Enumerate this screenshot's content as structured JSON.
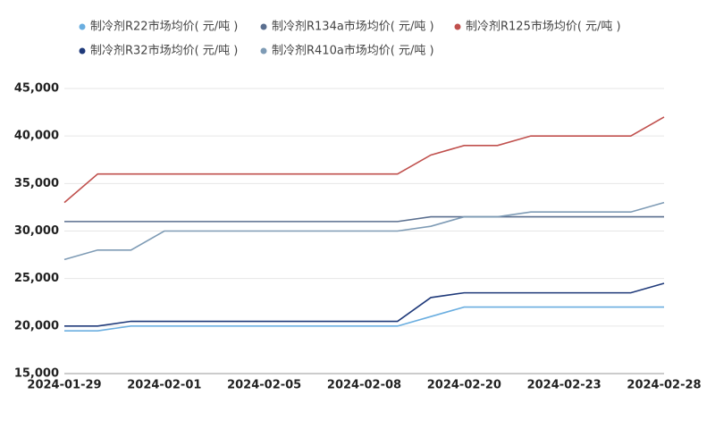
{
  "chart_data": {
    "type": "line",
    "categories": [
      "2024-01-29",
      null,
      null,
      "2024-02-01",
      null,
      null,
      "2024-02-05",
      null,
      null,
      "2024-02-08",
      null,
      null,
      "2024-02-20",
      null,
      null,
      "2024-02-23",
      null,
      null,
      "2024-02-28"
    ],
    "series": [
      {
        "name": "制冷剂R22市场均价( 元/吨 )",
        "color": "#6aaee0",
        "values": [
          19500,
          19500,
          20000,
          20000,
          20000,
          20000,
          20000,
          20000,
          20000,
          20000,
          20000,
          21000,
          22000,
          22000,
          22000,
          22000,
          22000,
          22000,
          22000
        ]
      },
      {
        "name": "制冷剂R134a市场均价( 元/吨 )",
        "color": "#5a6f8f",
        "values": [
          31000,
          31000,
          31000,
          31000,
          31000,
          31000,
          31000,
          31000,
          31000,
          31000,
          31000,
          31500,
          31500,
          31500,
          31500,
          31500,
          31500,
          31500,
          31500
        ]
      },
      {
        "name": "制冷剂R125市场均价( 元/吨 )",
        "color": "#c0504d",
        "values": [
          33000,
          36000,
          36000,
          36000,
          36000,
          36000,
          36000,
          36000,
          36000,
          36000,
          36000,
          38000,
          39000,
          39000,
          40000,
          40000,
          40000,
          40000,
          42000
        ]
      },
      {
        "name": "制冷剂R32市场均价( 元/吨 )",
        "color": "#1f3a7a",
        "values": [
          20000,
          20000,
          20500,
          20500,
          20500,
          20500,
          20500,
          20500,
          20500,
          20500,
          20500,
          23000,
          23500,
          23500,
          23500,
          23500,
          23500,
          23500,
          24500
        ]
      },
      {
        "name": "制冷剂R410a市场均价( 元/吨 )",
        "color": "#7e9bb5",
        "values": [
          27000,
          28000,
          28000,
          30000,
          30000,
          30000,
          30000,
          30000,
          30000,
          30000,
          30000,
          30500,
          31500,
          31500,
          32000,
          32000,
          32000,
          32000,
          33000
        ]
      }
    ],
    "ylim": [
      15000,
      45000
    ],
    "yticks": [
      {
        "value": 15000,
        "label": "15,000"
      },
      {
        "value": 20000,
        "label": "20,000"
      },
      {
        "value": 25000,
        "label": "25,000"
      },
      {
        "value": 30000,
        "label": "30,000"
      },
      {
        "value": 35000,
        "label": "35,000"
      },
      {
        "value": 40000,
        "label": "40,000"
      },
      {
        "value": 45000,
        "label": "45,000"
      }
    ],
    "grid": true
  }
}
